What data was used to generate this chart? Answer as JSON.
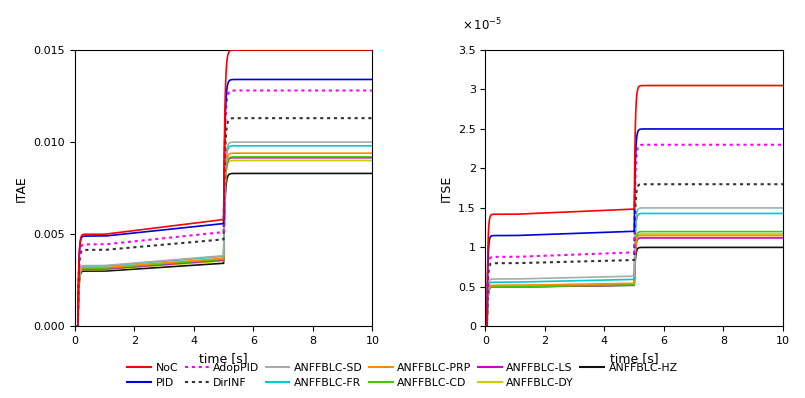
{
  "left_ylabel": "ITAE",
  "right_ylabel": "ITSE",
  "xlabel": "time [s]",
  "xlim": [
    0,
    10
  ],
  "left_ylim": [
    0,
    0.015
  ],
  "right_ylim": [
    0,
    3.5e-05
  ],
  "left_yticks": [
    0,
    0.005,
    0.01,
    0.015
  ],
  "right_yticks": [
    0,
    5e-06,
    1e-05,
    1.5e-05,
    2e-05,
    2.5e-05,
    3e-05,
    3.5e-05
  ],
  "xticks": [
    0,
    2,
    4,
    6,
    8,
    10
  ],
  "series": [
    {
      "label": "NoC",
      "color": "#FF0000",
      "linestyle": "solid",
      "linewidth": 1.2,
      "zorder": 11
    },
    {
      "label": "PID",
      "color": "#0000DD",
      "linestyle": "solid",
      "linewidth": 1.2,
      "zorder": 10
    },
    {
      "label": "AdopPID",
      "color": "#FF00FF",
      "linestyle": "dotted",
      "linewidth": 1.5,
      "zorder": 9
    },
    {
      "label": "DirINF",
      "color": "#333333",
      "linestyle": "dotted",
      "linewidth": 1.5,
      "zorder": 8
    },
    {
      "label": "ANFFBLC-SD",
      "color": "#AAAAAA",
      "linestyle": "solid",
      "linewidth": 1.2,
      "zorder": 7
    },
    {
      "label": "ANFFBLC-FR",
      "color": "#00CCCC",
      "linestyle": "solid",
      "linewidth": 1.2,
      "zorder": 6
    },
    {
      "label": "ANFFBLC-PRP",
      "color": "#FF8C00",
      "linestyle": "solid",
      "linewidth": 1.2,
      "zorder": 5
    },
    {
      "label": "ANFFBLC-CD",
      "color": "#44CC00",
      "linestyle": "solid",
      "linewidth": 1.2,
      "zorder": 4
    },
    {
      "label": "ANFFBLC-LS",
      "color": "#CC00CC",
      "linestyle": "solid",
      "linewidth": 1.2,
      "zorder": 3
    },
    {
      "label": "ANFFBLC-DY",
      "color": "#CCCC00",
      "linestyle": "solid",
      "linewidth": 1.2,
      "zorder": 2
    },
    {
      "label": "ANFFBLC-HZ",
      "color": "#111111",
      "linestyle": "solid",
      "linewidth": 1.2,
      "zorder": 1
    }
  ],
  "itae_p1": {
    "NoC": 0.005,
    "PID": 0.0049,
    "AdopPID": 0.00445,
    "DirINF": 0.00415,
    "ANFFBLC-SD": 0.0033,
    "ANFFBLC-FR": 0.00328,
    "ANFFBLC-PRP": 0.0032,
    "ANFFBLC-CD": 0.00316,
    "ANFFBLC-LS": 0.00312,
    "ANFFBLC-DY": 0.00308,
    "ANFFBLC-HZ": 0.003
  },
  "itae_p2": {
    "NoC": 0.015,
    "PID": 0.0134,
    "AdopPID": 0.0128,
    "DirINF": 0.0113,
    "ANFFBLC-SD": 0.01,
    "ANFFBLC-FR": 0.0098,
    "ANFFBLC-PRP": 0.0094,
    "ANFFBLC-CD": 0.0092,
    "ANFFBLC-LS": 0.00915,
    "ANFFBLC-DY": 0.009,
    "ANFFBLC-HZ": 0.0083
  },
  "itse_p1": {
    "NoC": 1.42e-05,
    "PID": 1.15e-05,
    "AdopPID": 8.8e-06,
    "DirINF": 8e-06,
    "ANFFBLC-SD": 6e-06,
    "ANFFBLC-FR": 5.6e-06,
    "ANFFBLC-PRP": 5.2e-06,
    "ANFFBLC-CD": 5e-06,
    "ANFFBLC-LS": 5e-06,
    "ANFFBLC-DY": 5e-06,
    "ANFFBLC-HZ": 5e-06
  },
  "itse_p2": {
    "NoC": 3.05e-05,
    "PID": 2.5e-05,
    "AdopPID": 2.3e-05,
    "DirINF": 1.8e-05,
    "ANFFBLC-SD": 1.5e-05,
    "ANFFBLC-FR": 1.43e-05,
    "ANFFBLC-PRP": 1.15e-05,
    "ANFFBLC-CD": 1.2e-05,
    "ANFFBLC-LS": 1.12e-05,
    "ANFFBLC-DY": 1.17e-05,
    "ANFFBLC-HZ": 1e-05
  }
}
